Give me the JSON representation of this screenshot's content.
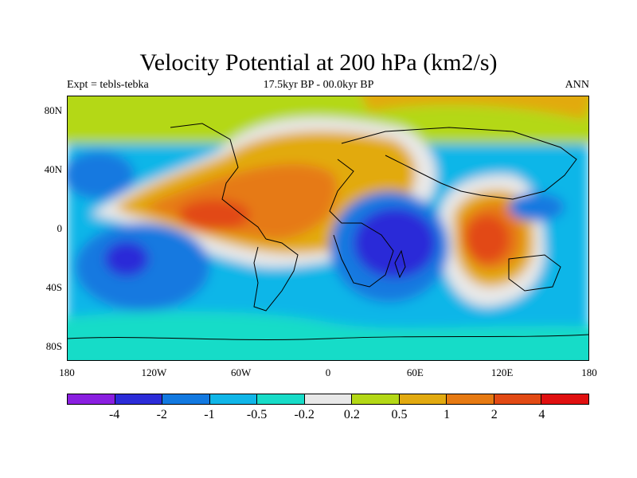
{
  "title": "Velocity Potential at 200 hPa (km2/s)",
  "subtitle_left": "Expt = tebls-tebka",
  "subtitle_center": "17.5kyr BP - 00.0kyr BP",
  "subtitle_right": "ANN",
  "map": {
    "projection": "cylindrical equidistant",
    "lon_range": [
      -180,
      180
    ],
    "lat_range": [
      -90,
      90
    ],
    "y_ticks": [
      {
        "label": "80N",
        "lat": 80
      },
      {
        "label": "40N",
        "lat": 40
      },
      {
        "label": "0",
        "lat": 0
      },
      {
        "label": "40S",
        "lat": -40
      },
      {
        "label": "80S",
        "lat": -80
      }
    ],
    "x_ticks": [
      {
        "label": "180",
        "lon": -180
      },
      {
        "label": "120W",
        "lon": -120
      },
      {
        "label": "60W",
        "lon": -60
      },
      {
        "label": "0",
        "lon": 0
      },
      {
        "label": "60E",
        "lon": 60
      },
      {
        "label": "120E",
        "lon": 120
      },
      {
        "label": "180",
        "lon": 180
      }
    ],
    "features": [
      {
        "name": "positive-band-atlantic",
        "level": 0.5,
        "description": "positive"
      },
      {
        "name": "max-south-america",
        "level": 4,
        "description": "maximum over tropical Americas"
      },
      {
        "name": "max-maritime-continent",
        "level": 4,
        "description": "maximum over Maritime Continent"
      },
      {
        "name": "min-indian-ocean",
        "level": -4,
        "description": "minimum over Madagascar / W Indian Ocean"
      },
      {
        "name": "min-south-pacific",
        "level": -4,
        "description": "minimum over SE Pacific"
      }
    ]
  },
  "colorbar": {
    "colors": [
      "#8a1fe0",
      "#2c2cd8",
      "#1279e0",
      "#10b6e8",
      "#18dcc8",
      "#e8e8e8",
      "#b4d816",
      "#e2aa10",
      "#e67a12",
      "#e24a14",
      "#e01010"
    ],
    "labels": [
      {
        "text": "-4",
        "index": 1
      },
      {
        "text": "-2",
        "index": 2
      },
      {
        "text": "-1",
        "index": 3
      },
      {
        "text": "-0.5",
        "index": 4
      },
      {
        "text": "-0.2",
        "index": 5
      },
      {
        "text": "0.2",
        "index": 6
      },
      {
        "text": "0.5",
        "index": 7
      },
      {
        "text": "1",
        "index": 8
      },
      {
        "text": "2",
        "index": 9
      },
      {
        "text": "4",
        "index": 10
      }
    ]
  }
}
